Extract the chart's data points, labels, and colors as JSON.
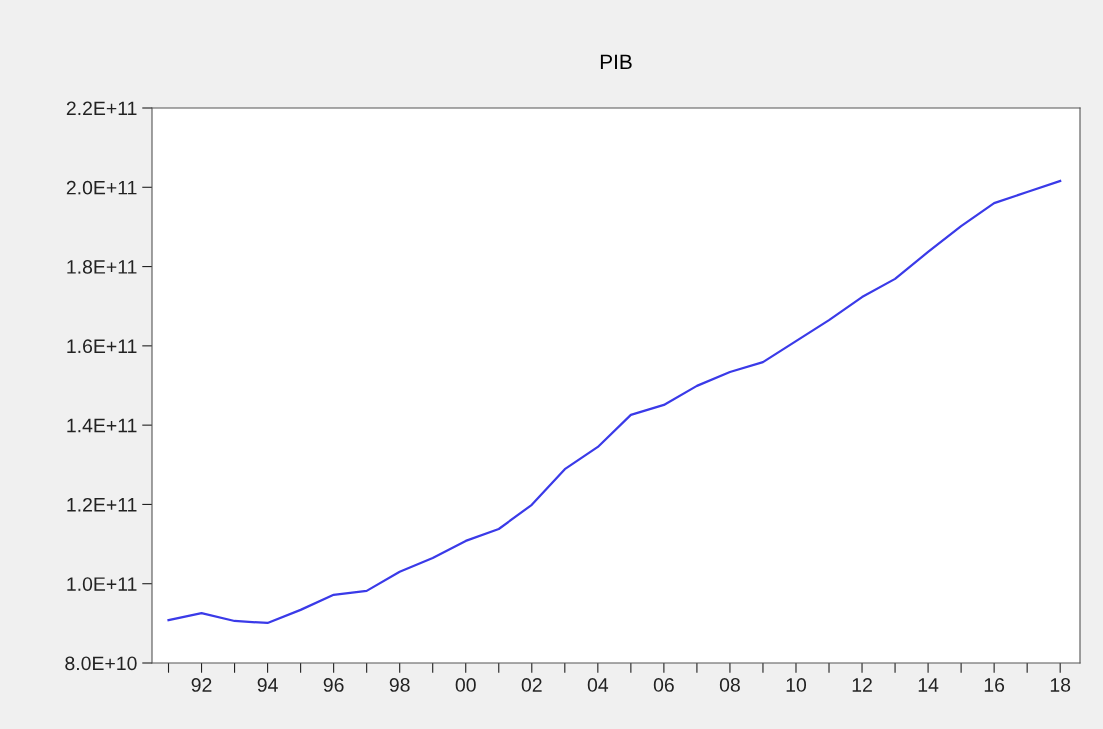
{
  "chart_data": {
    "type": "line",
    "title": "PIB",
    "x": [
      1991,
      1992,
      1993,
      1994,
      1995,
      1996,
      1997,
      1998,
      1999,
      2000,
      2001,
      2002,
      2003,
      2004,
      2005,
      2006,
      2007,
      2008,
      2009,
      2010,
      2011,
      2012,
      2013,
      2014,
      2015,
      2016,
      2017,
      2018
    ],
    "series": [
      {
        "color": "#3a3ae8",
        "values": [
          90800000000.0,
          92600000000.0,
          90600000000.0,
          90100000000.0,
          93400000000.0,
          97200000000.0,
          98200000000.0,
          103000000000.0,
          106500000000.0,
          110800000000.0,
          113800000000.0,
          119900000000.0,
          128900000000.0,
          134500000000.0,
          142600000000.0,
          145100000000.0,
          149900000000.0,
          153400000000.0,
          155900000000.0,
          161200000000.0,
          166500000000.0,
          172300000000.0,
          176900000000.0,
          183700000000.0,
          190200000000.0,
          196000000000.0,
          198800000000.0,
          201600000000.0
        ]
      }
    ],
    "xlim": [
      1990.5,
      2018.6
    ],
    "xticks": [
      {
        "value": 1991,
        "label": null
      },
      {
        "value": 1992,
        "label": "92"
      },
      {
        "value": 1993,
        "label": null
      },
      {
        "value": 1994,
        "label": "94"
      },
      {
        "value": 1995,
        "label": null
      },
      {
        "value": 1996,
        "label": "96"
      },
      {
        "value": 1997,
        "label": null
      },
      {
        "value": 1998,
        "label": "98"
      },
      {
        "value": 1999,
        "label": null
      },
      {
        "value": 2000,
        "label": "00"
      },
      {
        "value": 2001,
        "label": null
      },
      {
        "value": 2002,
        "label": "02"
      },
      {
        "value": 2003,
        "label": null
      },
      {
        "value": 2004,
        "label": "04"
      },
      {
        "value": 2005,
        "label": null
      },
      {
        "value": 2006,
        "label": "06"
      },
      {
        "value": 2007,
        "label": null
      },
      {
        "value": 2008,
        "label": "08"
      },
      {
        "value": 2009,
        "label": null
      },
      {
        "value": 2010,
        "label": "10"
      },
      {
        "value": 2011,
        "label": null
      },
      {
        "value": 2012,
        "label": "12"
      },
      {
        "value": 2013,
        "label": null
      },
      {
        "value": 2014,
        "label": "14"
      },
      {
        "value": 2015,
        "label": null
      },
      {
        "value": 2016,
        "label": "16"
      },
      {
        "value": 2017,
        "label": null
      },
      {
        "value": 2018,
        "label": "18"
      }
    ],
    "ylim": [
      80000000000.0,
      220000000000.0
    ],
    "yticks": [
      {
        "value": 80000000000.0,
        "label": "8.0E+10"
      },
      {
        "value": 100000000000.0,
        "label": "1.0E+11"
      },
      {
        "value": 120000000000.0,
        "label": "1.2E+11"
      },
      {
        "value": 140000000000.0,
        "label": "1.4E+11"
      },
      {
        "value": 160000000000.0,
        "label": "1.6E+11"
      },
      {
        "value": 180000000000.0,
        "label": "1.8E+11"
      },
      {
        "value": 200000000000.0,
        "label": "2.0E+11"
      },
      {
        "value": 220000000000.0,
        "label": "2.2E+11"
      }
    ],
    "grid": false,
    "legend": false,
    "marker": "none",
    "line_style": "solid"
  }
}
